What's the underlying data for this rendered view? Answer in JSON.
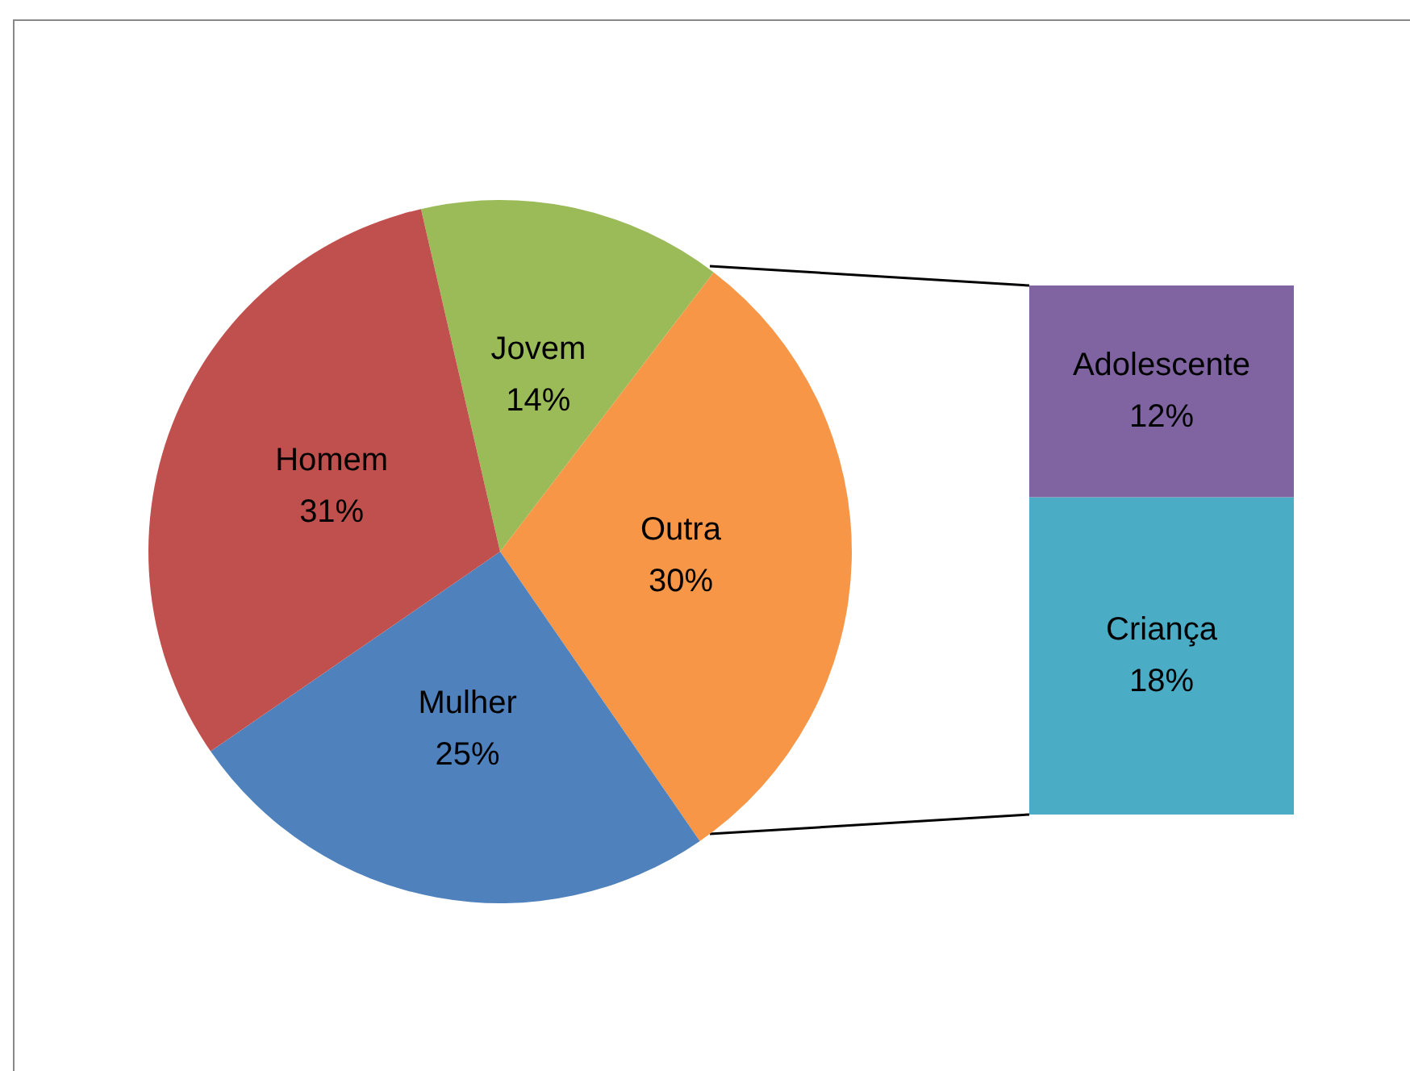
{
  "chart_data": [
    {
      "type": "pie",
      "categories": [
        "Jovem",
        "Outra",
        "Mulher",
        "Homem"
      ],
      "values": [
        14,
        30,
        25,
        31
      ],
      "value_labels": [
        "14%",
        "30%",
        "25%",
        "31%"
      ],
      "colors": [
        "#9bbb59",
        "#f79646",
        "#4f81bd",
        "#c0504d"
      ],
      "legend": false
    },
    {
      "type": "bar",
      "stacked": true,
      "categories": [
        null
      ],
      "legend": false,
      "series": [
        {
          "name": "Criança",
          "color": "#4bacc6",
          "values": [
            18
          ],
          "value_labels": [
            "18%"
          ]
        },
        {
          "name": "Adolescente",
          "color": "#8064a2",
          "values": [
            12
          ],
          "value_labels": [
            "12%"
          ]
        }
      ]
    }
  ]
}
